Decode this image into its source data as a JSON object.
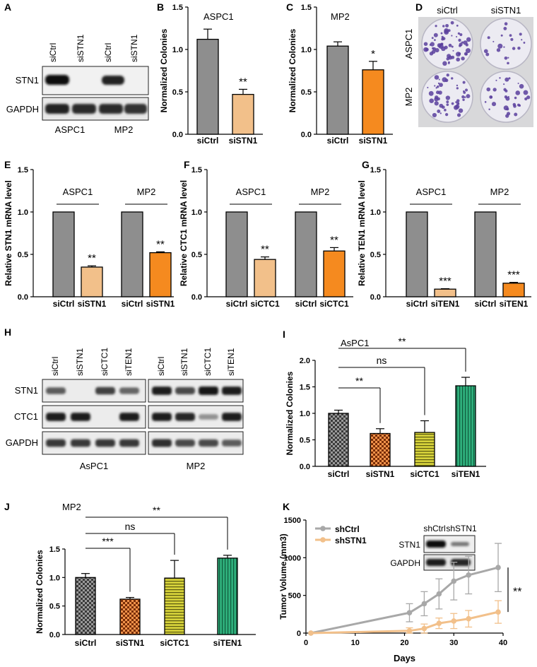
{
  "panel_letters": [
    "A",
    "B",
    "C",
    "D",
    "E",
    "F",
    "G",
    "H",
    "I",
    "J",
    "K"
  ],
  "colors": {
    "gray": "#8e8e8e",
    "light_orange": "#f2c08a",
    "orange": "#f58a1f",
    "olive": "#c7c42a",
    "green": "#2aa877",
    "dark_orange": "#c0581c",
    "line_gray": "#a8a8a8",
    "line_orange": "#f2c08a",
    "dish_purple": "#5a3f9e"
  },
  "blot_a": {
    "lanes": [
      "siCtrl",
      "siSTN1",
      "siCtrl",
      "siSTN1"
    ],
    "rows": [
      "STN1",
      "GAPDH"
    ],
    "groups": [
      "ASPC1",
      "MP2"
    ]
  },
  "blot_d": {
    "cols": [
      "siCtrl",
      "siSTN1"
    ],
    "rows": [
      "ASPC1",
      "MP2"
    ]
  },
  "blot_h": {
    "lanes": [
      "siCtrl",
      "siSTN1",
      "siCTC1",
      "siTEN1"
    ],
    "rows": [
      "STN1",
      "CTC1",
      "GAPDH"
    ],
    "groups": [
      "AsPC1",
      "MP2"
    ]
  },
  "chart_data": [
    {
      "panel": "B",
      "type": "bar",
      "title": "ASPC1",
      "categories": [
        "siCtrl",
        "siSTN1"
      ],
      "values": [
        1.12,
        0.47
      ],
      "errors": [
        0.12,
        0.06
      ],
      "ylabel": "Normalized Colonies",
      "ylim": [
        0,
        1.5
      ],
      "yticks": [
        "0.0",
        "0.5",
        "1.0",
        "1.5"
      ],
      "sig": [
        {
          "bar": 1,
          "text": "**"
        }
      ]
    },
    {
      "panel": "C",
      "type": "bar",
      "title": "MP2",
      "categories": [
        "siCtrl",
        "siSTN1"
      ],
      "values": [
        1.04,
        0.76
      ],
      "errors": [
        0.05,
        0.1
      ],
      "ylabel": "Normalized Colonies",
      "ylim": [
        0,
        1.5
      ],
      "yticks": [
        "0.0",
        "0.5",
        "1.0",
        "1.5"
      ],
      "sig": [
        {
          "bar": 1,
          "text": "*"
        }
      ]
    },
    {
      "panel": "E",
      "type": "bar",
      "categories": [
        "siCtrl",
        "siSTN1",
        "siCtrl",
        "siSTN1"
      ],
      "values": [
        1.0,
        0.35,
        1.0,
        0.52
      ],
      "errors": [
        0,
        0.015,
        0,
        0.01
      ],
      "ylabel": "Relative STN1 mRNA level",
      "ylim": [
        0,
        1.5
      ],
      "yticks": [
        "0.0",
        "0.5",
        "1.0",
        "1.5"
      ],
      "groups": [
        {
          "label": "ASPC1",
          "from": 0,
          "to": 1
        },
        {
          "label": "MP2",
          "from": 2,
          "to": 3
        }
      ],
      "sig": [
        {
          "bar": 1,
          "text": "**"
        },
        {
          "bar": 3,
          "text": "**"
        }
      ]
    },
    {
      "panel": "F",
      "type": "bar",
      "categories": [
        "siCtrl",
        "siCTC1",
        "siCtrl",
        "siCTC1"
      ],
      "values": [
        1.0,
        0.44,
        1.0,
        0.54
      ],
      "errors": [
        0,
        0.03,
        0,
        0.04
      ],
      "ylabel": "Relative CTC1 mRNA level",
      "ylim": [
        0,
        1.5
      ],
      "yticks": [
        "0.0",
        "0.5",
        "1.0",
        "1.5"
      ],
      "groups": [
        {
          "label": "ASPC1",
          "from": 0,
          "to": 1
        },
        {
          "label": "MP2",
          "from": 2,
          "to": 3
        }
      ],
      "sig": [
        {
          "bar": 1,
          "text": "**"
        },
        {
          "bar": 3,
          "text": "**"
        }
      ]
    },
    {
      "panel": "G",
      "type": "bar",
      "categories": [
        "siCtrl",
        "siTEN1",
        "siCtrl",
        "siTEN1"
      ],
      "values": [
        1.0,
        0.09,
        1.0,
        0.16
      ],
      "errors": [
        0,
        0.005,
        0,
        0.01
      ],
      "ylabel": "Relative TEN1 mRNA level",
      "ylim": [
        0,
        1.5
      ],
      "yticks": [
        "0.0",
        "0.5",
        "1.0",
        "1.5"
      ],
      "groups": [
        {
          "label": "ASPC1",
          "from": 0,
          "to": 1
        },
        {
          "label": "MP2",
          "from": 2,
          "to": 3
        }
      ],
      "sig": [
        {
          "bar": 1,
          "text": "***"
        },
        {
          "bar": 3,
          "text": "***"
        }
      ]
    },
    {
      "panel": "I",
      "type": "bar",
      "title": "AsPC1",
      "categories": [
        "siCtrl",
        "siSTN1",
        "siCTC1",
        "siTEN1"
      ],
      "values": [
        1.0,
        0.62,
        0.64,
        1.52
      ],
      "errors": [
        0.06,
        0.09,
        0.22,
        0.16
      ],
      "ylabel": "Normalized Colonies",
      "ylim": [
        0,
        2.0
      ],
      "yticks": [
        "0.0",
        "0.5",
        "1.0",
        "1.5",
        "2.0"
      ],
      "brackets": [
        {
          "from": 0,
          "to": 1,
          "text": "**",
          "level": 1.75
        },
        {
          "from": 0,
          "to": 2,
          "text": "ns",
          "level": 2.0
        },
        {
          "from": 0,
          "to": 3,
          "text": "**",
          "level": 2.3
        }
      ]
    },
    {
      "panel": "J",
      "type": "bar",
      "title": "MP2",
      "categories": [
        "siCtrl",
        "siSTN1",
        "siCTC1",
        "siTEN1"
      ],
      "values": [
        1.0,
        0.62,
        0.99,
        1.34
      ],
      "errors": [
        0.07,
        0.03,
        0.31,
        0.05
      ],
      "ylabel": "Normalized Colonies",
      "ylim": [
        0,
        1.5
      ],
      "yticks": [
        "0.0",
        "0.5",
        "1.0",
        "1.5"
      ],
      "brackets": [
        {
          "from": 0,
          "to": 1,
          "text": "***",
          "level": 1.58
        },
        {
          "from": 0,
          "to": 2,
          "text": "ns",
          "level": 1.8
        },
        {
          "from": 0,
          "to": 3,
          "text": "**",
          "level": 2.02
        }
      ]
    },
    {
      "panel": "K",
      "type": "line",
      "xlabel": "Days",
      "ylabel": "Tumor Volume (mm3)",
      "xlim": [
        0,
        40
      ],
      "ylim": [
        0,
        1500
      ],
      "xticks": [
        "0",
        "10",
        "20",
        "30",
        "40"
      ],
      "yticks": [
        "0",
        "500",
        "1000",
        "1500"
      ],
      "series": [
        {
          "name": "shCtrl",
          "x": [
            1,
            21,
            24,
            27,
            30,
            33,
            39
          ],
          "y": [
            0,
            270,
            390,
            520,
            690,
            770,
            870
          ],
          "err": [
            0,
            120,
            160,
            200,
            250,
            250,
            320
          ]
        },
        {
          "name": "shSTN1",
          "x": [
            1,
            21,
            24,
            27,
            30,
            33,
            39
          ],
          "y": [
            0,
            30,
            60,
            130,
            160,
            190,
            280
          ],
          "err": [
            0,
            40,
            60,
            70,
            100,
            110,
            150
          ]
        }
      ],
      "sig": "**",
      "inset_blot": {
        "cols": [
          "shCtrl",
          "shSTN1"
        ],
        "rows": [
          "STN1",
          "GAPDH"
        ]
      }
    }
  ]
}
